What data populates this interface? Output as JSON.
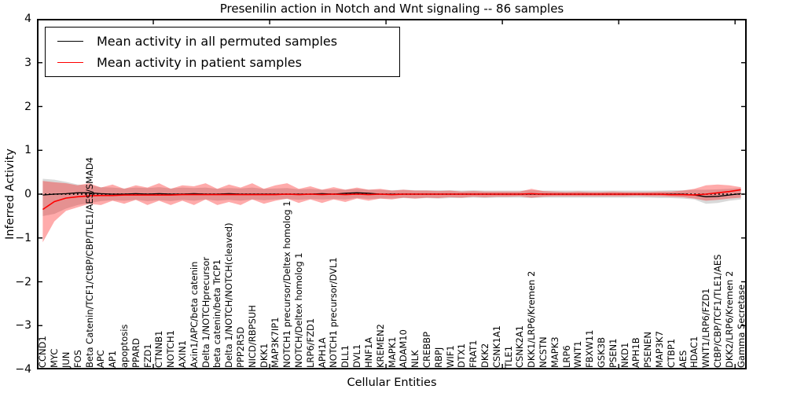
{
  "chart_data": {
    "type": "line",
    "title": "Presenilin action in Notch and Wnt signaling -- 86 samples",
    "xlabel": "Cellular Entities",
    "ylabel": "Inferred Activity",
    "ylim": [
      -4,
      4
    ],
    "yticks": [
      4,
      3,
      2,
      1,
      0,
      -1,
      -2,
      -3,
      -4
    ],
    "xtick_positions": [
      10,
      20,
      30,
      40,
      50,
      60
    ],
    "grid": false,
    "legend_position": "upper left",
    "zero_line": {
      "style": "dotted",
      "color": "#000000",
      "y": 0
    },
    "categories": [
      "CCND1",
      "MYC",
      "JUN",
      "FOS",
      "Beta Catenin/TCF1/CtBP/CBP/TLE1/AES/SMAD4",
      "APC",
      "AP1",
      "apoptosis",
      "PPARD",
      "FZD1",
      "CTNNB1",
      "NOTCH1",
      "AXIN1",
      "Axin1/APC/beta catenin",
      "Delta 1/NOTCHprecursor",
      "beta catenin/beta TrCP1",
      "Delta 1/NOTCH/NOTCH(cleaved)",
      "PPP2R5D",
      "NICD/RBPSUH",
      "DKK1",
      "MAP3K7IP1",
      "NOTCH1 precursor/Deltex homolog 1",
      "NOTCH/Deltex homolog 1",
      "LRP6/FZD1",
      "APH1A",
      "NOTCH1 precursor/DVL1",
      "DLL1",
      "DVL1",
      "HNF1A",
      "KREMEN2",
      "MAPK1",
      "ADAM10",
      "NLK",
      "CREBBP",
      "RBPJ",
      "WIF1",
      "DTX1",
      "FRAT1",
      "DKK2",
      "CSNK1A1",
      "TLE1",
      "CSNK2A1",
      "DKK1/LRP6/Kremen 2",
      "NCSTN",
      "MAPK3",
      "LRP6",
      "WNT1",
      "FBXW11",
      "GSK3B",
      "PSEN1",
      "NKD1",
      "APH1B",
      "PSENEN",
      "MAP3K7",
      "CTBP1",
      "AES",
      "HDAC1",
      "WNT1/LRP6/FZD1",
      "CtBP/CBP/TCF1/TLE1/AES",
      "DKK2/LRP6/Kremen 2",
      "Gamma Secretase"
    ],
    "series": [
      {
        "name": "Mean activity in all permuted samples",
        "line_name": "permuted-mean-line",
        "band_name": "permuted-confidence-band",
        "line_color": "#000000",
        "band_color": "#888888",
        "band_opacity": 0.32,
        "values": [
          -0.02,
          0.0,
          0.01,
          0.03,
          0.03,
          0.01,
          0.0,
          0.0,
          0.01,
          0.0,
          0.01,
          0.0,
          0.0,
          0.01,
          0.0,
          0.0,
          0.01,
          0.0,
          0.0,
          0.0,
          0.0,
          0.0,
          0.0,
          0.0,
          0.01,
          0.0,
          0.02,
          0.03,
          0.02,
          0.0,
          0.0,
          0.0,
          0.0,
          0.0,
          0.0,
          0.0,
          0.0,
          0.0,
          0.0,
          0.0,
          0.0,
          0.0,
          0.0,
          0.0,
          0.0,
          0.0,
          0.0,
          0.0,
          0.0,
          0.0,
          0.0,
          0.0,
          0.0,
          0.0,
          0.0,
          0.0,
          -0.02,
          -0.06,
          -0.05,
          -0.02,
          0.01
        ],
        "band_lo": [
          -0.5,
          -0.45,
          -0.33,
          -0.25,
          -0.2,
          -0.16,
          -0.14,
          -0.15,
          -0.13,
          -0.16,
          -0.14,
          -0.16,
          -0.13,
          -0.15,
          -0.12,
          -0.15,
          -0.13,
          -0.15,
          -0.12,
          -0.14,
          -0.12,
          -0.11,
          -0.13,
          -0.11,
          -0.12,
          -0.11,
          -0.12,
          -0.09,
          -0.11,
          -0.1,
          -0.1,
          -0.09,
          -0.1,
          -0.09,
          -0.1,
          -0.09,
          -0.09,
          -0.08,
          -0.09,
          -0.08,
          -0.08,
          -0.08,
          -0.09,
          -0.08,
          -0.08,
          -0.08,
          -0.08,
          -0.08,
          -0.08,
          -0.08,
          -0.08,
          -0.08,
          -0.08,
          -0.09,
          -0.09,
          -0.1,
          -0.12,
          -0.22,
          -0.2,
          -0.15,
          -0.12
        ],
        "band_hi": [
          0.35,
          0.33,
          0.28,
          0.22,
          0.2,
          0.16,
          0.15,
          0.13,
          0.15,
          0.14,
          0.16,
          0.13,
          0.15,
          0.14,
          0.15,
          0.12,
          0.14,
          0.13,
          0.15,
          0.12,
          0.13,
          0.14,
          0.11,
          0.12,
          0.1,
          0.11,
          0.1,
          0.12,
          0.1,
          0.1,
          0.09,
          0.1,
          0.09,
          0.09,
          0.09,
          0.09,
          0.08,
          0.09,
          0.08,
          0.08,
          0.08,
          0.08,
          0.09,
          0.08,
          0.08,
          0.08,
          0.08,
          0.08,
          0.08,
          0.08,
          0.08,
          0.08,
          0.08,
          0.08,
          0.09,
          0.09,
          0.1,
          0.1,
          0.11,
          0.12,
          0.14
        ]
      },
      {
        "name": "Mean activity in patient samples",
        "line_name": "patient-mean-line",
        "band_name": "patient-confidence-band",
        "line_color": "#ff0000",
        "band_color": "#ff0000",
        "band_opacity": 0.33,
        "values": [
          -0.35,
          -0.17,
          -0.09,
          -0.06,
          -0.04,
          -0.03,
          -0.03,
          -0.02,
          -0.02,
          -0.02,
          -0.02,
          -0.02,
          -0.01,
          -0.01,
          -0.01,
          -0.01,
          -0.01,
          -0.01,
          -0.01,
          -0.01,
          -0.01,
          0.0,
          -0.01,
          0.0,
          -0.01,
          0.0,
          -0.01,
          0.0,
          -0.01,
          0.0,
          -0.01,
          0.0,
          0.0,
          0.0,
          0.0,
          0.0,
          0.0,
          0.0,
          0.0,
          0.0,
          0.0,
          0.0,
          0.01,
          0.0,
          0.0,
          0.0,
          0.0,
          0.0,
          0.0,
          0.0,
          0.0,
          0.0,
          0.0,
          0.0,
          -0.01,
          -0.01,
          -0.02,
          0.0,
          0.03,
          0.06,
          0.1
        ],
        "band_lo": [
          -1.1,
          -0.62,
          -0.38,
          -0.3,
          -0.22,
          -0.25,
          -0.15,
          -0.22,
          -0.13,
          -0.25,
          -0.15,
          -0.25,
          -0.15,
          -0.25,
          -0.12,
          -0.25,
          -0.18,
          -0.25,
          -0.12,
          -0.22,
          -0.15,
          -0.1,
          -0.2,
          -0.12,
          -0.2,
          -0.12,
          -0.18,
          -0.1,
          -0.15,
          -0.1,
          -0.12,
          -0.08,
          -0.1,
          -0.08,
          -0.09,
          -0.07,
          -0.08,
          -0.06,
          -0.07,
          -0.06,
          -0.06,
          -0.05,
          -0.08,
          -0.06,
          -0.05,
          -0.05,
          -0.05,
          -0.05,
          -0.05,
          -0.05,
          -0.05,
          -0.04,
          -0.05,
          -0.05,
          -0.06,
          -0.07,
          -0.1,
          -0.15,
          -0.13,
          -0.1,
          -0.08
        ],
        "band_hi": [
          0.3,
          0.27,
          0.25,
          0.2,
          0.25,
          0.15,
          0.22,
          0.12,
          0.2,
          0.15,
          0.25,
          0.12,
          0.2,
          0.18,
          0.25,
          0.12,
          0.22,
          0.15,
          0.25,
          0.12,
          0.2,
          0.25,
          0.12,
          0.18,
          0.1,
          0.16,
          0.1,
          0.15,
          0.1,
          0.12,
          0.08,
          0.1,
          0.08,
          0.08,
          0.07,
          0.08,
          0.06,
          0.07,
          0.06,
          0.06,
          0.06,
          0.06,
          0.12,
          0.07,
          0.06,
          0.05,
          0.06,
          0.05,
          0.05,
          0.06,
          0.05,
          0.05,
          0.05,
          0.06,
          0.06,
          0.08,
          0.12,
          0.2,
          0.22,
          0.2,
          0.16
        ]
      }
    ]
  }
}
